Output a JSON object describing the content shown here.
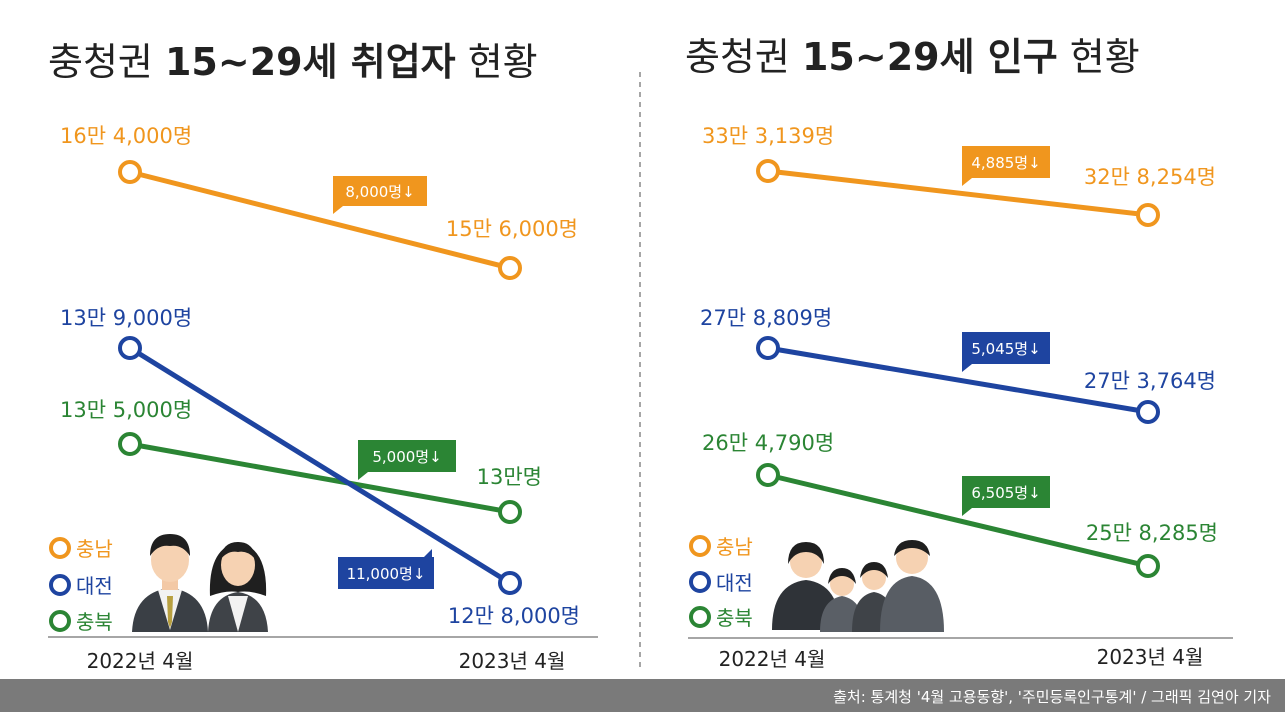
{
  "colors": {
    "orange": "#F0961E",
    "blue": "#1E44A0",
    "green": "#2B8534",
    "text": "#222222",
    "grey": "#888888"
  },
  "legend": [
    "충남",
    "대전",
    "충북"
  ],
  "footer": {
    "source": "출처: 통계청 '4월 고용동향', '주민등록인구통계' / 그래픽 김연아 기자"
  },
  "chart_data": [
    {
      "type": "line",
      "title_parts": {
        "pre": "충청권 ",
        "bold": "15~29세 취업자",
        "post": " 현황"
      },
      "categories": [
        "2022년 4월",
        "2023년 4월"
      ],
      "series": [
        {
          "name": "충남",
          "values": [
            164000,
            156000
          ],
          "start_label": "16만 4,000명",
          "end_label": "15만 6,000명",
          "change_label": "8,000명↓"
        },
        {
          "name": "대전",
          "values": [
            139000,
            128000
          ],
          "start_label": "13만 9,000명",
          "end_label": "12만 8,000명",
          "change_label": "11,000명↓"
        },
        {
          "name": "충북",
          "values": [
            135000,
            130000
          ],
          "start_label": "13만 5,000명",
          "end_label": "13만명",
          "change_label": "5,000명↓"
        }
      ]
    },
    {
      "type": "line",
      "title_parts": {
        "pre": "충청권 ",
        "bold": "15~29세 인구",
        "post": " 현황"
      },
      "categories": [
        "2022년 4월",
        "2023년 4월"
      ],
      "series": [
        {
          "name": "충남",
          "values": [
            333139,
            328254
          ],
          "start_label": "33만 3,139명",
          "end_label": "32만 8,254명",
          "change_label": "4,885명↓"
        },
        {
          "name": "대전",
          "values": [
            278809,
            273764
          ],
          "start_label": "27만 8,809명",
          "end_label": "27만 3,764명",
          "change_label": "5,045명↓"
        },
        {
          "name": "충북",
          "values": [
            264790,
            258285
          ],
          "start_label": "26만 4,790명",
          "end_label": "25만 8,285명",
          "change_label": "6,505명↓"
        }
      ]
    }
  ]
}
